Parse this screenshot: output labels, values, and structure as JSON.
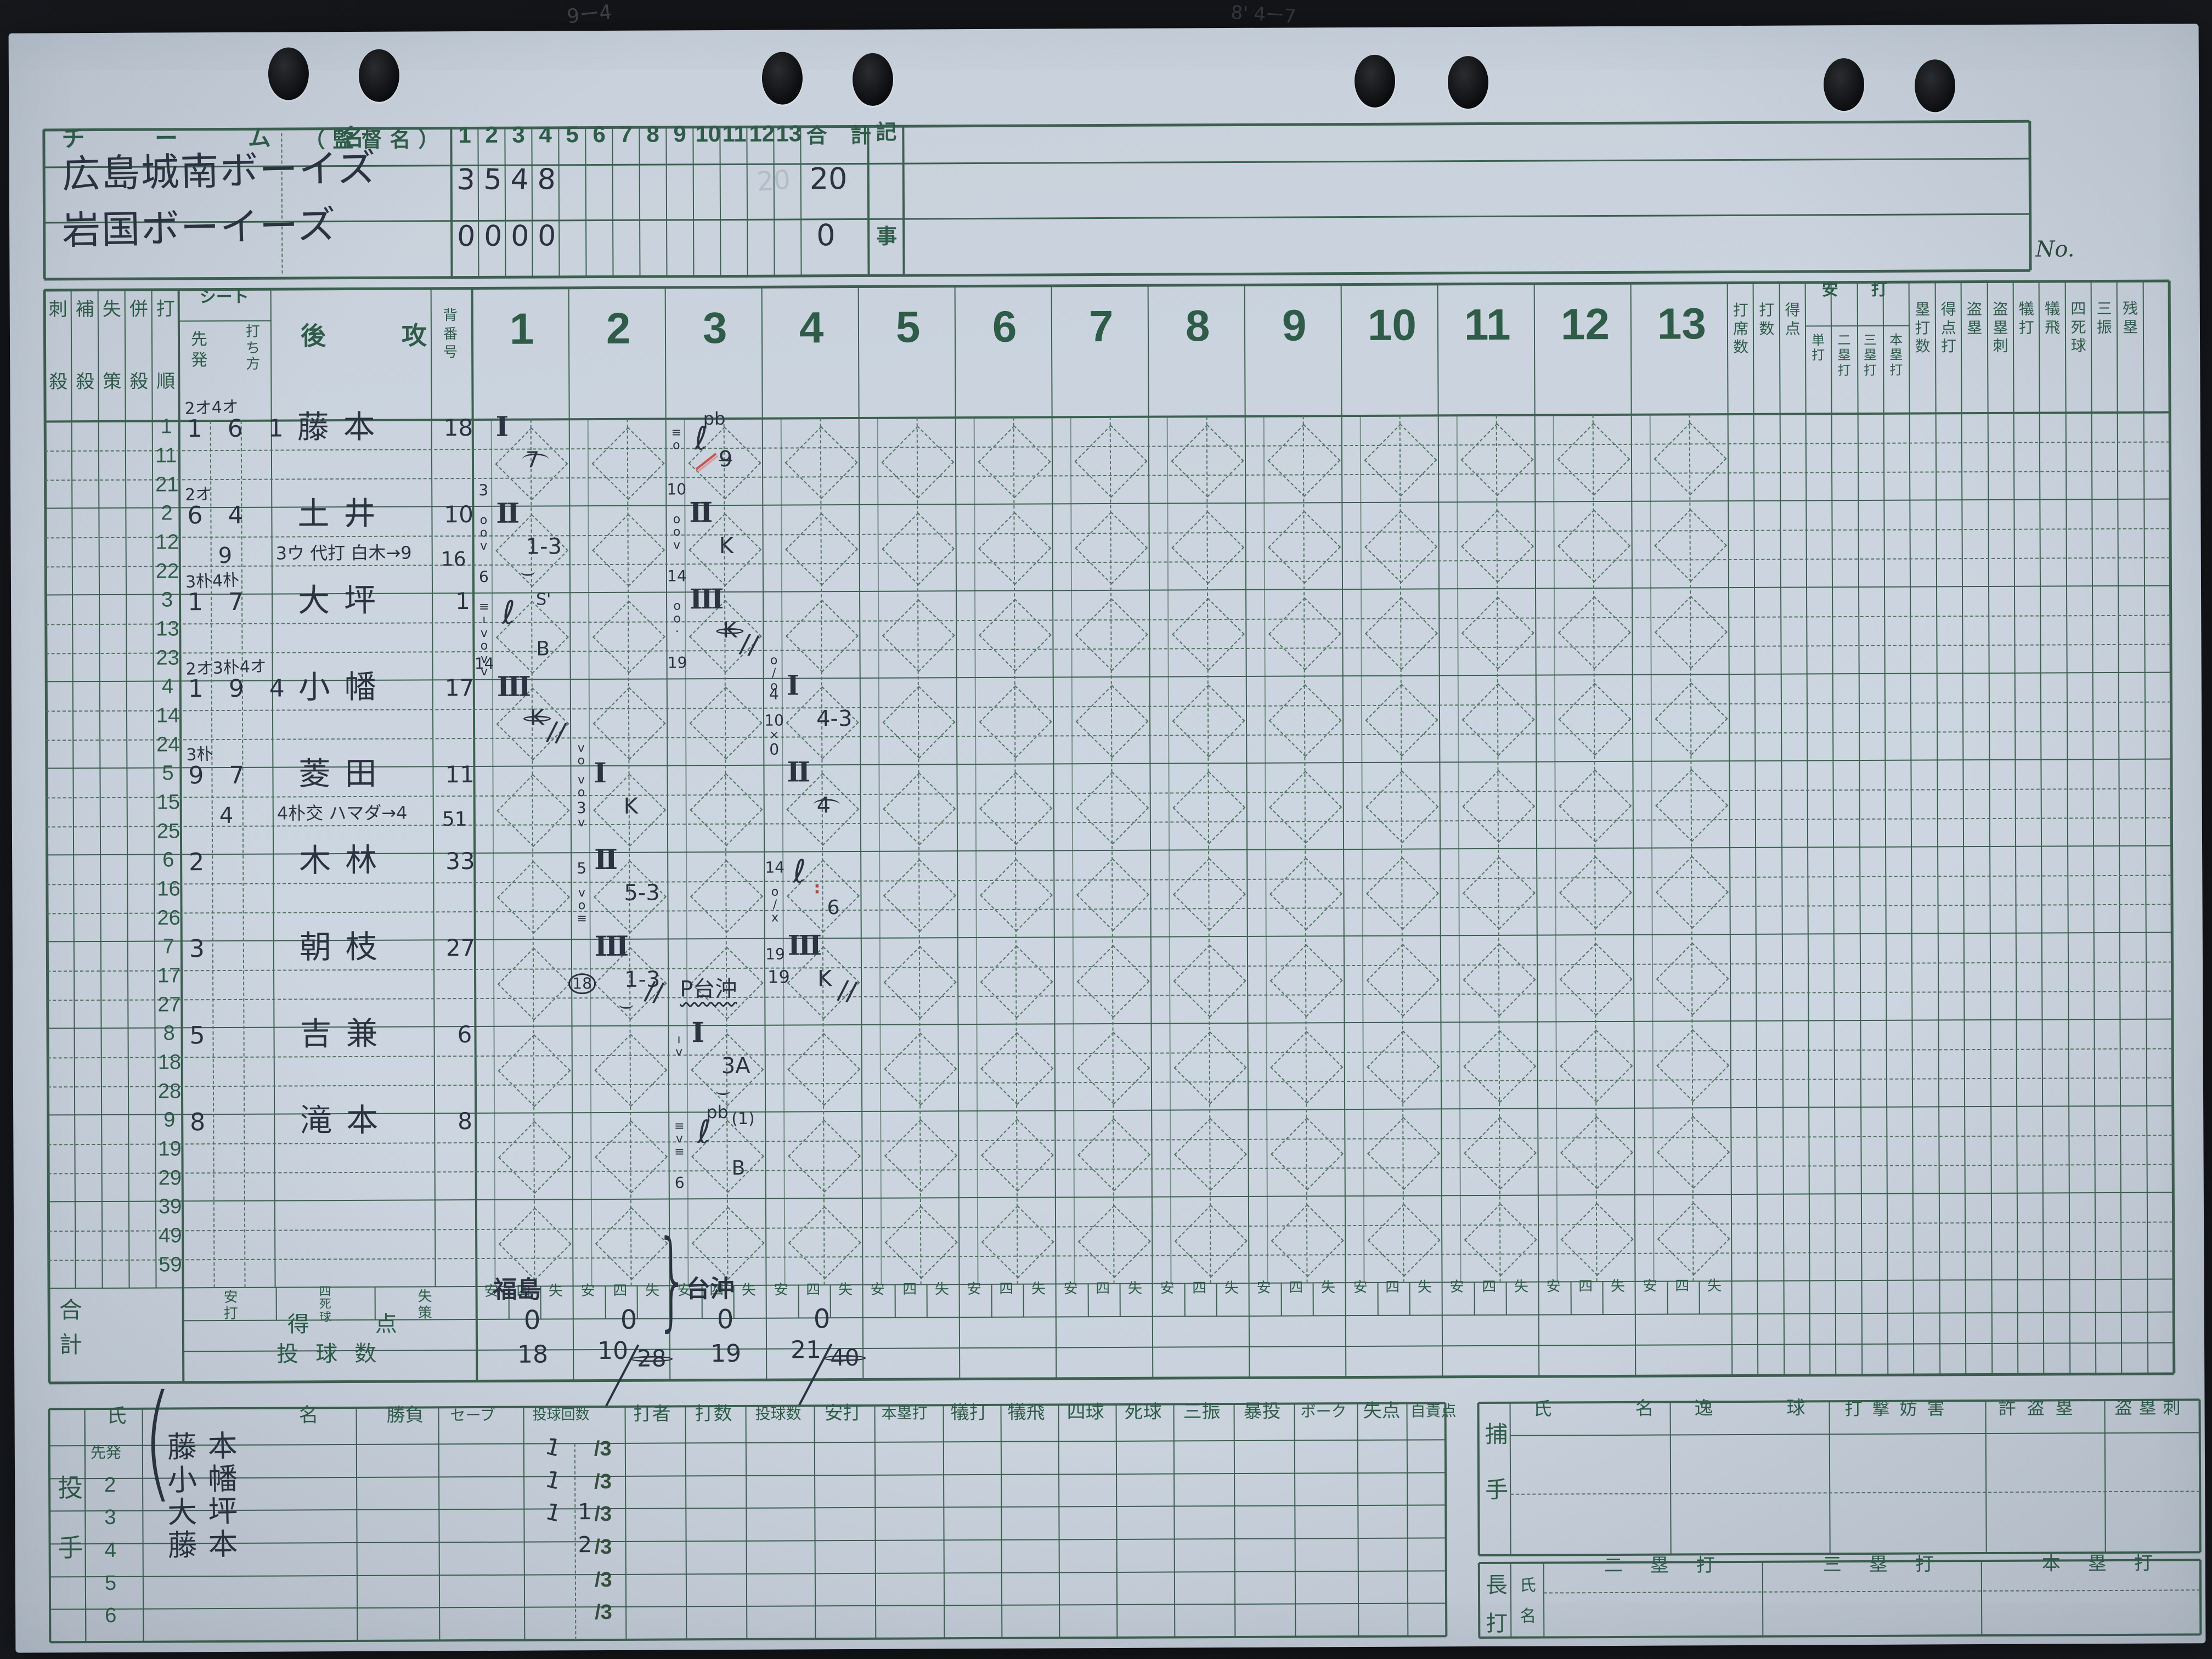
{
  "page": {
    "no_label": "No.",
    "pencil_left": "9ー4",
    "pencil_right": "8' 4ー7"
  },
  "scoreline": {
    "title_team": "チ ー ム 名",
    "title_manager": "（監督名）",
    "innings": [
      "1",
      "2",
      "3",
      "4",
      "5",
      "6",
      "7",
      "8",
      "9",
      "10",
      "11",
      "12",
      "13"
    ],
    "total_label": "合 計",
    "memo_top": "記",
    "memo_bottom": "事",
    "teams": [
      {
        "name": "広島城南ボーイズ",
        "scores": [
          "3",
          "5",
          "4",
          "8",
          "",
          "",
          "",
          "",
          "",
          "",
          "",
          "",
          ""
        ],
        "total": "20",
        "ghost": "20"
      },
      {
        "name": "岩国ボーイーズ",
        "scores": [
          "0",
          "0",
          "0",
          "0",
          "",
          "",
          "",
          "",
          "",
          "",
          "",
          "",
          ""
        ],
        "total": "0",
        "ghost": ""
      }
    ]
  },
  "grid": {
    "left_headers": [
      "刺殺",
      "補殺",
      "失策",
      "併殺",
      "打順"
    ],
    "seat_header": "シート",
    "starter_label": "先発",
    "batstyle_label": "打ち方",
    "side_header": "後攻",
    "uniform_header": "背番号",
    "inning_headers": [
      "1",
      "2",
      "3",
      "4",
      "5",
      "6",
      "7",
      "8",
      "9",
      "10",
      "11",
      "12",
      "13"
    ],
    "stat_headers_left": [
      "打席数",
      "打数",
      "得点"
    ],
    "hit_group_label": "安打",
    "hit_sub_headers": [
      "単打",
      "二塁打",
      "三塁打",
      "本塁打"
    ],
    "stat_headers_right": [
      "塁打数",
      "得点打",
      "盗塁",
      "盗塁刺",
      "犠打",
      "犠飛",
      "四死球",
      "三振",
      "残塁"
    ],
    "batters": [
      {
        "orders": [
          "1",
          "11",
          "21"
        ],
        "positions": "1 6 1",
        "position_note": "2オ4オ",
        "name": "藤本",
        "number": "18"
      },
      {
        "orders": [
          "2",
          "12",
          "22"
        ],
        "positions": "6 4",
        "position_note": "2オ",
        "position_sub": "9",
        "name": "土井",
        "name_sub": "3ウ 代打 白木→9",
        "number": "10",
        "number_sub": "16"
      },
      {
        "orders": [
          "3",
          "13",
          "23"
        ],
        "positions": "1 7",
        "position_note": "3朴4朴",
        "name": "大坪",
        "number": "1"
      },
      {
        "orders": [
          "4",
          "14",
          "24"
        ],
        "positions": "1 9 4",
        "position_note": "2オ3朴4オ",
        "name": "小幡",
        "number": "17"
      },
      {
        "orders": [
          "5",
          "15",
          "25"
        ],
        "positions": "9 7",
        "position_note": "3朴",
        "position_sub": "4",
        "name": "菱田",
        "name_sub": "4朴交 ハマダ→4",
        "number": "11",
        "number_sub": "51"
      },
      {
        "orders": [
          "6",
          "16",
          "26"
        ],
        "positions": "2",
        "name": "木林",
        "number": "33"
      },
      {
        "orders": [
          "7",
          "17",
          "27"
        ],
        "positions": "3",
        "name": "朝枝",
        "number": "27"
      },
      {
        "orders": [
          "8",
          "18",
          "28"
        ],
        "positions": "5",
        "name": "吉兼",
        "number": "6"
      },
      {
        "orders": [
          "9",
          "19",
          "29"
        ],
        "positions": "8",
        "name": "滝本",
        "number": "8"
      },
      {
        "orders": [
          "39",
          "49",
          "59"
        ]
      }
    ],
    "entries": [
      {
        "row": 1,
        "inning": 1,
        "out": "I",
        "main": "7",
        "arc": true
      },
      {
        "row": 2,
        "inning": 1,
        "out": "II",
        "main": "1-3",
        "curl": true
      },
      {
        "row": 3,
        "inning": 1,
        "ell": true,
        "top_right": "S'",
        "bottom_right": "B"
      },
      {
        "row": 4,
        "inning": 1,
        "out": "III",
        "main": "K",
        "circled": true,
        "slashes": true
      },
      {
        "row": 5,
        "inning": 2,
        "out": "I",
        "main": "K"
      },
      {
        "row": 6,
        "inning": 2,
        "out": "II",
        "main": "5-3"
      },
      {
        "row": 7,
        "inning": 2,
        "out": "III",
        "main": "1-3",
        "curl": true,
        "slashes": true
      },
      {
        "row": 8,
        "inning": 3,
        "out": "I",
        "main": "3A",
        "curl": true
      },
      {
        "row": 9,
        "inning": 3,
        "top_left": "pb",
        "top_right": "(1)",
        "ell": true,
        "bottom_right": "B"
      },
      {
        "row": 1,
        "inning": 3,
        "top_left": "pb",
        "ell": true,
        "red_slash": true,
        "main": "9",
        "underline": true
      },
      {
        "row": 2,
        "inning": 3,
        "out": "II",
        "main": "K"
      },
      {
        "row": 3,
        "inning": 3,
        "out": "III",
        "main": "K",
        "circled": true,
        "slashes": true
      },
      {
        "row": 4,
        "inning": 4,
        "out": "I",
        "main": "4-3"
      },
      {
        "row": 5,
        "inning": 4,
        "out": "II",
        "main": "4",
        "arc": true
      },
      {
        "row": 6,
        "inning": 4,
        "ell": true,
        "red_colon": true,
        "bottom_right": "6"
      },
      {
        "row": 7,
        "inning": 4,
        "out": "III",
        "main": "K",
        "slashes": true
      }
    ],
    "pitcher_change": {
      "text": "P台沖",
      "pitch_count": "19"
    },
    "tallies": [
      {
        "inning": 1,
        "row": 1,
        "pos": "bottom",
        "text": "3"
      },
      {
        "inning": 1,
        "row": 2,
        "pos": "top",
        "text": "o o v"
      },
      {
        "inning": 1,
        "row": 2,
        "pos": "bottom",
        "text": "6"
      },
      {
        "inning": 1,
        "row": 3,
        "pos": "top",
        "text": "≡ ı"
      },
      {
        "inning": 1,
        "row": 3,
        "pos": "mid",
        "text": "v o v v"
      },
      {
        "inning": 1,
        "row": 3,
        "pos": "bottom",
        "text": "14"
      },
      {
        "inning": 2,
        "row": 4,
        "pos": "bottom",
        "text": "v o"
      },
      {
        "inning": 2,
        "row": 5,
        "pos": "top",
        "text": "v o"
      },
      {
        "inning": 2,
        "row": 5,
        "pos": "mid",
        "text": "3 v"
      },
      {
        "inning": 2,
        "row": 6,
        "pos": "top",
        "text": "5"
      },
      {
        "inning": 2,
        "row": 6,
        "pos": "mid",
        "text": "v o ≡"
      },
      {
        "inning": 2,
        "row": 7,
        "pos": "mid",
        "text": "18",
        "circled": true
      },
      {
        "inning": 3,
        "row": 1,
        "pos": "top",
        "text": "≡ o"
      },
      {
        "inning": 3,
        "row": 1,
        "pos": "bottom",
        "text": "10"
      },
      {
        "inning": 3,
        "row": 2,
        "pos": "top",
        "text": "o o v"
      },
      {
        "inning": 3,
        "row": 2,
        "pos": "bottom",
        "text": "14"
      },
      {
        "inning": 3,
        "row": 3,
        "pos": "top",
        "text": "o o ·"
      },
      {
        "inning": 3,
        "row": 3,
        "pos": "bottom",
        "text": "19"
      },
      {
        "inning": 3,
        "row": 8,
        "pos": "top",
        "text": "ı v"
      },
      {
        "inning": 3,
        "row": 9,
        "pos": "top",
        "text": "≡ v ≡"
      },
      {
        "inning": 3,
        "row": 9,
        "pos": "bottom",
        "text": "6"
      },
      {
        "inning": 4,
        "row": 3,
        "pos": "bottom",
        "text": "o / o"
      },
      {
        "inning": 4,
        "row": 4,
        "pos": "top",
        "text": "4"
      },
      {
        "inning": 4,
        "row": 4,
        "pos": "mid",
        "text": "10 × 0"
      },
      {
        "inning": 4,
        "row": 6,
        "pos": "top",
        "text": "14"
      },
      {
        "inning": 4,
        "row": 6,
        "pos": "mid",
        "text": "o / x"
      },
      {
        "inning": 4,
        "row": 7,
        "pos": "top",
        "text": "19"
      }
    ]
  },
  "totals": {
    "block_label": "合計",
    "col_labels": [
      "安打",
      "四死球",
      "失策"
    ],
    "inning_sub_labels": [
      "安",
      "四",
      "失"
    ],
    "pitcher_inning_names": [
      {
        "inning": 1,
        "name": "福島"
      },
      {
        "inning": 3,
        "name": "台沖"
      }
    ],
    "rows": [
      {
        "label": "得　点",
        "values": [
          "0",
          "0",
          "0",
          "0",
          "",
          "",
          "",
          "",
          "",
          "",
          "",
          "",
          ""
        ]
      },
      {
        "label": "投 球 数",
        "values": [
          "18",
          "10",
          "19",
          "21",
          "",
          "",
          "",
          "",
          "",
          "",
          "",
          "",
          ""
        ]
      }
    ],
    "circled": [
      {
        "inning": 2,
        "value": "28"
      },
      {
        "inning": 4,
        "value": "40"
      }
    ]
  },
  "pitchers": {
    "side_label": "投手",
    "headers": [
      "氏名",
      "勝負",
      "セーブ",
      "投球回数",
      "打者",
      "打数",
      "投球数",
      "安打",
      "本塁打",
      "犠打",
      "犠飛",
      "四球",
      "死球",
      "三振",
      "暴投",
      "ボーク",
      "失点",
      "自責点"
    ],
    "rows": [
      {
        "row_label": "先発",
        "name": "藤本",
        "hand_left": "1",
        "hand_right": "",
        "printed": "/3"
      },
      {
        "row_label": "2",
        "name": "小幡",
        "hand_left": "1",
        "hand_right": "",
        "printed": "/3"
      },
      {
        "row_label": "3",
        "name": "大坪",
        "hand_left": "1",
        "hand_right": "1",
        "printed": "/3"
      },
      {
        "row_label": "4",
        "name": "藤本",
        "hand_left": "",
        "hand_right": "2",
        "printed": "/3"
      },
      {
        "row_label": "5",
        "name": "",
        "hand_left": "",
        "hand_right": "",
        "printed": "/3"
      },
      {
        "row_label": "6",
        "name": "",
        "hand_left": "",
        "hand_right": "",
        "printed": "/3"
      }
    ]
  },
  "catchers": {
    "side_label": "捕手",
    "headers": [
      "氏名",
      "逸球",
      "打撃妨害",
      "許盗塁",
      "盗塁刺"
    ]
  },
  "extra_base_hits": {
    "side_label": "長打",
    "name_label": "氏名",
    "headers": [
      "二塁打",
      "三塁打",
      "本塁打"
    ]
  }
}
